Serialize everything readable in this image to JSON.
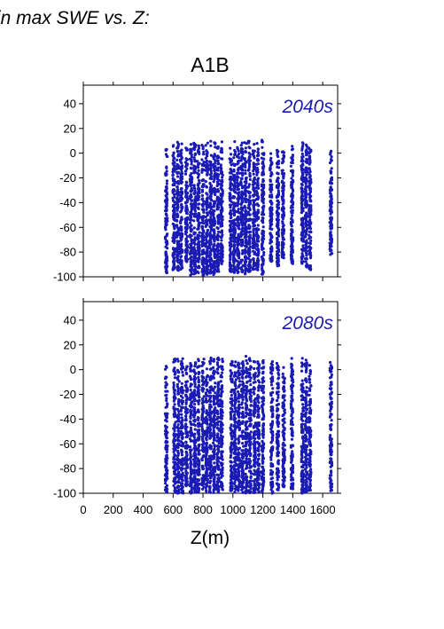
{
  "header": {
    "caption": "in max SWE vs. Z:",
    "scenario": "A1B"
  },
  "colors": {
    "points": "#1a1ab4",
    "axes": "#000000"
  },
  "chart_data": [
    {
      "type": "scatter",
      "panel_label": "2040s",
      "xlim": [
        0,
        1700
      ],
      "ylim": [
        -100,
        55
      ],
      "xticks": [
        0,
        200,
        400,
        600,
        800,
        1000,
        1200,
        1400,
        1600
      ],
      "yticks": [
        -100,
        -80,
        -60,
        -40,
        -20,
        0,
        20,
        40
      ],
      "xlabel": "",
      "ylabel": "",
      "point_columns": [
        {
          "x": 555,
          "ymin": -97,
          "ymax": 5
        },
        {
          "x": 605,
          "ymin": -95,
          "ymax": 8
        },
        {
          "x": 630,
          "ymin": -95,
          "ymax": 11
        },
        {
          "x": 655,
          "ymin": -96,
          "ymax": 8
        },
        {
          "x": 690,
          "ymin": -90,
          "ymax": 5
        },
        {
          "x": 720,
          "ymin": -99,
          "ymax": 8
        },
        {
          "x": 745,
          "ymin": -98,
          "ymax": 9
        },
        {
          "x": 770,
          "ymin": -97,
          "ymax": 11
        },
        {
          "x": 800,
          "ymin": -99,
          "ymax": 8
        },
        {
          "x": 825,
          "ymin": -98,
          "ymax": 10
        },
        {
          "x": 850,
          "ymin": -99,
          "ymax": 11
        },
        {
          "x": 875,
          "ymin": -99,
          "ymax": 10
        },
        {
          "x": 900,
          "ymin": -96,
          "ymax": 9
        },
        {
          "x": 925,
          "ymin": -90,
          "ymax": 11
        },
        {
          "x": 985,
          "ymin": -96,
          "ymax": 6
        },
        {
          "x": 1010,
          "ymin": -98,
          "ymax": 10
        },
        {
          "x": 1035,
          "ymin": -97,
          "ymax": 6
        },
        {
          "x": 1060,
          "ymin": -96,
          "ymax": 11
        },
        {
          "x": 1085,
          "ymin": -99,
          "ymax": 10
        },
        {
          "x": 1110,
          "ymin": -96,
          "ymax": 11
        },
        {
          "x": 1140,
          "ymin": -94,
          "ymax": 9
        },
        {
          "x": 1165,
          "ymin": -95,
          "ymax": 10
        },
        {
          "x": 1200,
          "ymin": -98,
          "ymax": 11
        },
        {
          "x": 1255,
          "ymin": -88,
          "ymax": 4
        },
        {
          "x": 1300,
          "ymin": -92,
          "ymax": 4
        },
        {
          "x": 1335,
          "ymin": -85,
          "ymax": 4
        },
        {
          "x": 1395,
          "ymin": -90,
          "ymax": 8
        },
        {
          "x": 1465,
          "ymin": -90,
          "ymax": 11
        },
        {
          "x": 1490,
          "ymin": -93,
          "ymax": 10
        },
        {
          "x": 1515,
          "ymin": -95,
          "ymax": 9
        },
        {
          "x": 1655,
          "ymin": -82,
          "ymax": 5
        }
      ]
    },
    {
      "type": "scatter",
      "panel_label": "2080s",
      "xlim": [
        0,
        1700
      ],
      "ylim": [
        -100,
        55
      ],
      "xticks": [
        0,
        200,
        400,
        600,
        800,
        1000,
        1200,
        1400,
        1600
      ],
      "xtick_labels": [
        "0",
        "200",
        "400",
        "600",
        "800",
        "1000",
        "1200",
        "1400",
        "1600"
      ],
      "yticks": [
        -100,
        -80,
        -60,
        -40,
        -20,
        0,
        20,
        40
      ],
      "xlabel": "Z(m)",
      "ylabel": "",
      "point_columns": [
        {
          "x": 555,
          "ymin": -100,
          "ymax": 8
        },
        {
          "x": 610,
          "ymin": -100,
          "ymax": 10
        },
        {
          "x": 635,
          "ymin": -100,
          "ymax": 12
        },
        {
          "x": 660,
          "ymin": -100,
          "ymax": 9
        },
        {
          "x": 690,
          "ymin": -95,
          "ymax": 7
        },
        {
          "x": 720,
          "ymin": -100,
          "ymax": 9
        },
        {
          "x": 745,
          "ymin": -100,
          "ymax": 10
        },
        {
          "x": 770,
          "ymin": -100,
          "ymax": 9
        },
        {
          "x": 800,
          "ymin": -100,
          "ymax": 10
        },
        {
          "x": 825,
          "ymin": -100,
          "ymax": 11
        },
        {
          "x": 850,
          "ymin": -100,
          "ymax": 10
        },
        {
          "x": 875,
          "ymin": -100,
          "ymax": 9
        },
        {
          "x": 900,
          "ymin": -100,
          "ymax": 10
        },
        {
          "x": 925,
          "ymin": -98,
          "ymax": 9
        },
        {
          "x": 990,
          "ymin": -100,
          "ymax": 8
        },
        {
          "x": 1015,
          "ymin": -100,
          "ymax": 10
        },
        {
          "x": 1040,
          "ymin": -100,
          "ymax": 9
        },
        {
          "x": 1065,
          "ymin": -100,
          "ymax": 11
        },
        {
          "x": 1090,
          "ymin": -100,
          "ymax": 12
        },
        {
          "x": 1115,
          "ymin": -100,
          "ymax": 10
        },
        {
          "x": 1145,
          "ymin": -100,
          "ymax": 9
        },
        {
          "x": 1170,
          "ymin": -100,
          "ymax": 11
        },
        {
          "x": 1200,
          "ymin": -100,
          "ymax": 10
        },
        {
          "x": 1260,
          "ymin": -100,
          "ymax": 8
        },
        {
          "x": 1300,
          "ymin": -98,
          "ymax": 8
        },
        {
          "x": 1340,
          "ymin": -95,
          "ymax": 9
        },
        {
          "x": 1395,
          "ymin": -97,
          "ymax": 10
        },
        {
          "x": 1465,
          "ymin": -100,
          "ymax": 11
        },
        {
          "x": 1490,
          "ymin": -100,
          "ymax": 10
        },
        {
          "x": 1515,
          "ymin": -100,
          "ymax": 9
        },
        {
          "x": 1655,
          "ymin": -98,
          "ymax": 11
        }
      ]
    }
  ]
}
